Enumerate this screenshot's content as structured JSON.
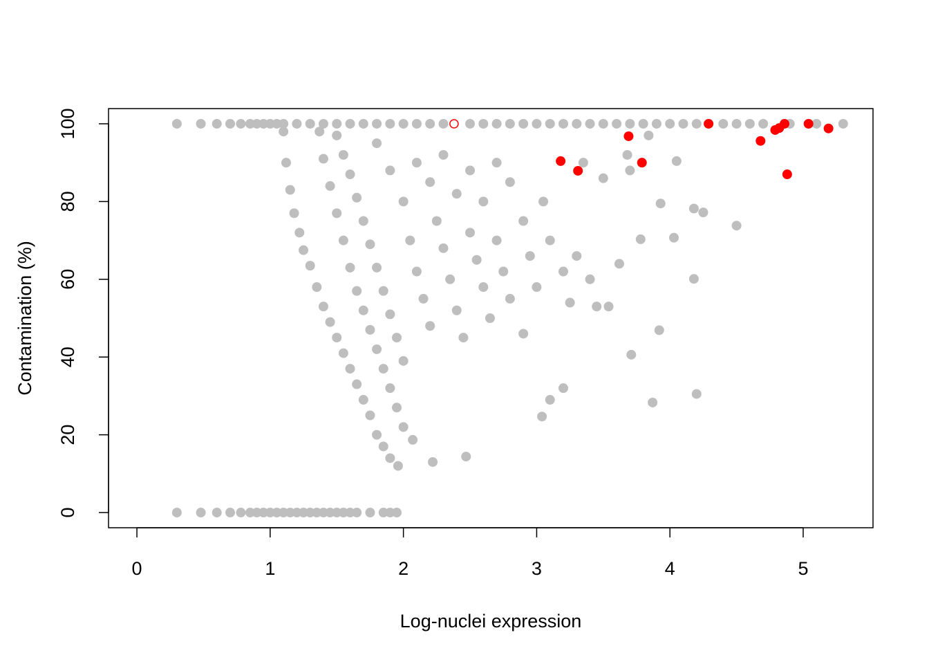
{
  "chart_data": {
    "type": "scatter",
    "x_label": "Log-nuclei expression",
    "y_label": "Contamination (%)",
    "xlim": [
      -0.213,
      5.524
    ],
    "ylim": [
      -3.91,
      103.91
    ],
    "xticks": [
      0,
      1,
      2,
      3,
      4,
      5
    ],
    "yticks": [
      0,
      20,
      40,
      60,
      80,
      100
    ],
    "grid": false,
    "series": [
      {
        "color": "#bebebe",
        "marker": "filled",
        "x": [
          0.3,
          0.48,
          0.6,
          0.7,
          0.78,
          0.85,
          0.9,
          0.95,
          1.0,
          1.05,
          1.1,
          1.2,
          1.3,
          1.4,
          1.5,
          1.6,
          1.7,
          1.8,
          1.9,
          2.0,
          2.1,
          2.2,
          2.3,
          2.5,
          2.6,
          2.7,
          2.8,
          2.9,
          3.0,
          3.1,
          3.2,
          3.3,
          3.4,
          3.5,
          3.6,
          3.7,
          3.8,
          3.9,
          4.0,
          4.1,
          4.2,
          4.4,
          4.5,
          4.6,
          4.7,
          4.9,
          5.1,
          5.3,
          0.3,
          0.48,
          0.6,
          0.7,
          0.78,
          0.85,
          0.9,
          0.95,
          1.0,
          1.05,
          1.1,
          1.15,
          1.2,
          1.25,
          1.3,
          1.35,
          1.4,
          1.45,
          1.5,
          1.55,
          1.6,
          1.65,
          1.75,
          1.85,
          1.9,
          1.95,
          1.1,
          1.12,
          1.15,
          1.18,
          1.22,
          1.25,
          1.3,
          1.35,
          1.4,
          1.45,
          1.5,
          1.55,
          1.6,
          1.65,
          1.7,
          1.75,
          1.8,
          1.85,
          1.9,
          1.96,
          1.37,
          1.4,
          1.45,
          1.5,
          1.55,
          1.6,
          1.65,
          1.7,
          1.75,
          1.8,
          1.85,
          1.9,
          1.95,
          2.0,
          1.5,
          1.55,
          1.6,
          1.65,
          1.7,
          1.75,
          1.8,
          1.85,
          1.9,
          1.95,
          2.0,
          2.07,
          1.8,
          1.9,
          2.0,
          2.05,
          2.1,
          2.15,
          2.2,
          2.1,
          2.2,
          2.25,
          2.3,
          2.35,
          2.4,
          2.45,
          2.3,
          2.4,
          2.5,
          2.55,
          2.6,
          2.65,
          2.5,
          2.6,
          2.7,
          2.75,
          2.8,
          2.7,
          2.8,
          2.9,
          2.95,
          3.0,
          3.05,
          3.1,
          3.2,
          3.25,
          3.3,
          3.4,
          3.45,
          3.35,
          3.5,
          2.9,
          4.5,
          4.2,
          3.87,
          4.18,
          3.92,
          3.71,
          4.05,
          4.18,
          4.25,
          4.03,
          3.04,
          2.47,
          2.22,
          3.1,
          3.2,
          3.68,
          3.7,
          3.78,
          3.62,
          3.54,
          3.84,
          3.93
        ],
        "values": [
          100,
          100,
          100,
          100,
          100,
          100,
          100,
          100,
          100,
          100,
          100,
          100,
          100,
          100,
          100,
          100,
          100,
          100,
          100,
          100,
          100,
          100,
          100,
          100,
          100,
          100,
          100,
          100,
          100,
          100,
          100,
          100,
          100,
          100,
          100,
          100,
          100,
          100,
          100,
          100,
          100,
          100,
          100,
          100,
          100,
          100,
          100,
          100,
          0,
          0,
          0,
          0,
          0,
          0,
          0,
          0,
          0,
          0,
          0,
          0,
          0,
          0,
          0,
          0,
          0,
          0,
          0,
          0,
          0,
          0,
          0,
          0,
          0,
          0,
          98,
          90,
          83,
          77,
          72,
          67.5,
          63.5,
          58,
          53,
          49,
          45,
          41,
          37,
          33,
          29,
          25,
          20,
          17,
          14,
          12,
          98,
          91,
          84,
          77,
          70,
          63,
          57,
          52,
          47,
          42,
          37,
          32,
          27,
          22,
          97,
          92,
          87,
          81,
          75,
          69,
          63,
          57,
          51,
          45,
          39,
          18.7,
          95,
          88,
          80,
          70,
          62,
          55,
          48,
          90,
          85,
          75,
          68,
          60,
          52,
          45,
          92,
          82,
          72,
          65,
          58,
          50,
          88,
          80,
          70,
          62,
          55,
          90,
          85,
          75,
          66,
          58,
          80,
          70,
          62,
          54,
          66,
          60,
          53,
          90,
          86,
          46,
          73.8,
          30.5,
          28.3,
          60.1,
          46.9,
          40.6,
          90.4,
          78.2,
          77.2,
          70.7,
          24.7,
          14.4,
          13.0,
          29,
          32,
          92,
          88,
          70.3,
          64,
          53,
          97,
          79.5
        ]
      },
      {
        "color": "#ff0000",
        "marker": "filled",
        "x": [
          3.18,
          3.31,
          3.69,
          3.79,
          4.29,
          4.68,
          4.79,
          4.82,
          4.86,
          4.88,
          5.04,
          5.19
        ],
        "values": [
          90.4,
          87.9,
          96.8,
          90.0,
          100,
          95.6,
          98.4,
          98.9,
          100,
          87.0,
          100,
          98.8
        ]
      },
      {
        "color": "#ff0000",
        "marker": "open",
        "x": [
          2.38
        ],
        "values": [
          100
        ]
      }
    ]
  }
}
